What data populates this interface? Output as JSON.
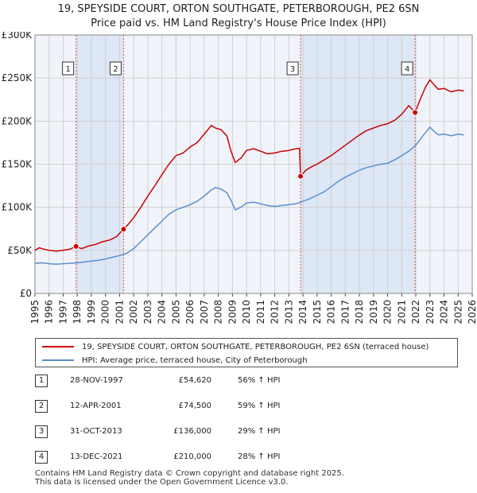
{
  "title": {
    "line1": "19, SPEYSIDE COURT, ORTON SOUTHGATE, PETERBOROUGH, PE2 6SN",
    "line2": "Price paid vs. HM Land Registry's House Price Index (HPI)"
  },
  "colors": {
    "property": "#cc0000",
    "hpi": "#5b8fcf",
    "shade": "#dde7f5",
    "grid": "#d0d0d0",
    "plot_bg": "#f0f4fa",
    "vline": "#e05050"
  },
  "chart_data": {
    "type": "line",
    "xlim": [
      1995,
      2026
    ],
    "ylim": [
      0,
      300000
    ],
    "y_ticks": [
      0,
      50000,
      100000,
      150000,
      200000,
      250000,
      300000
    ],
    "y_tick_labels": [
      "£0",
      "£50K",
      "£100K",
      "£150K",
      "£200K",
      "£250K",
      "£300K"
    ],
    "x_tick_labels": [
      "1995",
      "1996",
      "1997",
      "1998",
      "1999",
      "2000",
      "2001",
      "2002",
      "2003",
      "2004",
      "2005",
      "2006",
      "2007",
      "2008",
      "2009",
      "2010",
      "2011",
      "2012",
      "2013",
      "2014",
      "2015",
      "2016",
      "2017",
      "2018",
      "2019",
      "2020",
      "2021",
      "2022",
      "2023",
      "2024",
      "2025",
      "2026"
    ],
    "grid": true,
    "shaded_periods": [
      [
        1997.91,
        2001.28
      ],
      [
        2013.83,
        2021.95
      ]
    ],
    "series": [
      {
        "name": "19, SPEYSIDE COURT, ORTON SOUTHGATE, PETERBOROUGH, PE2 6SN (terraced house)",
        "color": "#cc0000",
        "points": [
          [
            1995.0,
            50000
          ],
          [
            1995.3,
            53000
          ],
          [
            1995.6,
            51500
          ],
          [
            1996.0,
            50000
          ],
          [
            1996.5,
            49000
          ],
          [
            1997.0,
            50000
          ],
          [
            1997.5,
            51500
          ],
          [
            1997.91,
            54620
          ],
          [
            1998.3,
            52000
          ],
          [
            1998.8,
            55000
          ],
          [
            1999.3,
            57000
          ],
          [
            1999.8,
            60000
          ],
          [
            2000.3,
            62000
          ],
          [
            2000.8,
            66000
          ],
          [
            2001.0,
            70000
          ],
          [
            2001.28,
            74500
          ],
          [
            2001.6,
            80000
          ],
          [
            2002.0,
            88000
          ],
          [
            2002.5,
            100000
          ],
          [
            2003.0,
            113000
          ],
          [
            2003.5,
            125000
          ],
          [
            2004.0,
            138000
          ],
          [
            2004.5,
            150000
          ],
          [
            2005.0,
            160000
          ],
          [
            2005.5,
            163000
          ],
          [
            2006.0,
            170000
          ],
          [
            2006.5,
            175000
          ],
          [
            2007.0,
            185000
          ],
          [
            2007.5,
            195000
          ],
          [
            2007.8,
            192000
          ],
          [
            2008.2,
            190000
          ],
          [
            2008.6,
            183000
          ],
          [
            2008.9,
            165000
          ],
          [
            2009.2,
            152000
          ],
          [
            2009.6,
            157000
          ],
          [
            2010.0,
            166000
          ],
          [
            2010.5,
            168000
          ],
          [
            2011.0,
            165000
          ],
          [
            2011.5,
            162000
          ],
          [
            2012.0,
            163000
          ],
          [
            2012.5,
            165000
          ],
          [
            2013.0,
            166000
          ],
          [
            2013.5,
            168000
          ],
          [
            2013.75,
            168500
          ],
          [
            2013.83,
            136000
          ],
          [
            2014.2,
            143000
          ],
          [
            2014.6,
            147000
          ],
          [
            2015.0,
            150000
          ],
          [
            2015.5,
            155000
          ],
          [
            2016.0,
            160000
          ],
          [
            2016.5,
            166000
          ],
          [
            2017.0,
            172000
          ],
          [
            2017.5,
            178000
          ],
          [
            2018.0,
            184000
          ],
          [
            2018.5,
            189000
          ],
          [
            2019.0,
            192000
          ],
          [
            2019.5,
            195000
          ],
          [
            2020.0,
            197000
          ],
          [
            2020.5,
            201000
          ],
          [
            2021.0,
            208000
          ],
          [
            2021.5,
            218000
          ],
          [
            2021.95,
            210000
          ],
          [
            2022.3,
            225000
          ],
          [
            2022.7,
            240000
          ],
          [
            2023.0,
            248000
          ],
          [
            2023.3,
            242000
          ],
          [
            2023.6,
            237000
          ],
          [
            2024.0,
            238000
          ],
          [
            2024.5,
            234000
          ],
          [
            2025.0,
            236000
          ],
          [
            2025.4,
            235000
          ]
        ]
      },
      {
        "name": "HPI: Average price, terraced house, City of Peterborough",
        "color": "#5b8fcf",
        "points": [
          [
            1995.0,
            35000
          ],
          [
            1995.5,
            35500
          ],
          [
            1996.0,
            34500
          ],
          [
            1996.5,
            34000
          ],
          [
            1997.0,
            34500
          ],
          [
            1997.5,
            35000
          ],
          [
            1998.0,
            35500
          ],
          [
            1998.5,
            36500
          ],
          [
            1999.0,
            37500
          ],
          [
            1999.5,
            38500
          ],
          [
            2000.0,
            40000
          ],
          [
            2000.5,
            42000
          ],
          [
            2001.0,
            44000
          ],
          [
            2001.5,
            46500
          ],
          [
            2002.0,
            52000
          ],
          [
            2002.5,
            60000
          ],
          [
            2003.0,
            68000
          ],
          [
            2003.5,
            76000
          ],
          [
            2004.0,
            84000
          ],
          [
            2004.5,
            92000
          ],
          [
            2005.0,
            97000
          ],
          [
            2005.5,
            100000
          ],
          [
            2006.0,
            103000
          ],
          [
            2006.5,
            107000
          ],
          [
            2007.0,
            113000
          ],
          [
            2007.5,
            120000
          ],
          [
            2007.8,
            123000
          ],
          [
            2008.2,
            121000
          ],
          [
            2008.6,
            117000
          ],
          [
            2008.9,
            108000
          ],
          [
            2009.2,
            97000
          ],
          [
            2009.6,
            100000
          ],
          [
            2010.0,
            105000
          ],
          [
            2010.5,
            106000
          ],
          [
            2011.0,
            104000
          ],
          [
            2011.5,
            102000
          ],
          [
            2012.0,
            101000
          ],
          [
            2012.5,
            102000
          ],
          [
            2013.0,
            103000
          ],
          [
            2013.5,
            104000
          ],
          [
            2014.0,
            107000
          ],
          [
            2014.5,
            110000
          ],
          [
            2015.0,
            114000
          ],
          [
            2015.5,
            118000
          ],
          [
            2016.0,
            124000
          ],
          [
            2016.5,
            130000
          ],
          [
            2017.0,
            135000
          ],
          [
            2017.5,
            139000
          ],
          [
            2018.0,
            143000
          ],
          [
            2018.5,
            146000
          ],
          [
            2019.0,
            148000
          ],
          [
            2019.5,
            150000
          ],
          [
            2020.0,
            151000
          ],
          [
            2020.5,
            155000
          ],
          [
            2021.0,
            160000
          ],
          [
            2021.5,
            165000
          ],
          [
            2022.0,
            172000
          ],
          [
            2022.5,
            183000
          ],
          [
            2023.0,
            193000
          ],
          [
            2023.3,
            188000
          ],
          [
            2023.6,
            184000
          ],
          [
            2024.0,
            185000
          ],
          [
            2024.5,
            183000
          ],
          [
            2025.0,
            185000
          ],
          [
            2025.4,
            184000
          ]
        ]
      }
    ],
    "sales": [
      {
        "num": "1",
        "x": 1997.91,
        "y": 54620
      },
      {
        "num": "2",
        "x": 2001.28,
        "y": 74500
      },
      {
        "num": "3",
        "x": 2013.83,
        "y": 136000
      },
      {
        "num": "4",
        "x": 2021.95,
        "y": 210000
      }
    ]
  },
  "legend": {
    "property_label": "19, SPEYSIDE COURT, ORTON SOUTHGATE, PETERBOROUGH, PE2 6SN (terraced house)",
    "hpi_label": "HPI: Average price, terraced house, City of Peterborough"
  },
  "sales_table": [
    {
      "num": "1",
      "date": "28-NOV-1997",
      "price": "£54,620",
      "hpi": "56% ↑ HPI"
    },
    {
      "num": "2",
      "date": "12-APR-2001",
      "price": "£74,500",
      "hpi": "59% ↑ HPI"
    },
    {
      "num": "3",
      "date": "31-OCT-2013",
      "price": "£136,000",
      "hpi": "29% ↑ HPI"
    },
    {
      "num": "4",
      "date": "13-DEC-2021",
      "price": "£210,000",
      "hpi": "28% ↑ HPI"
    }
  ],
  "footer": {
    "line1": "Contains HM Land Registry data © Crown copyright and database right 2025.",
    "line2": "This data is licensed under the Open Government Licence v3.0."
  }
}
